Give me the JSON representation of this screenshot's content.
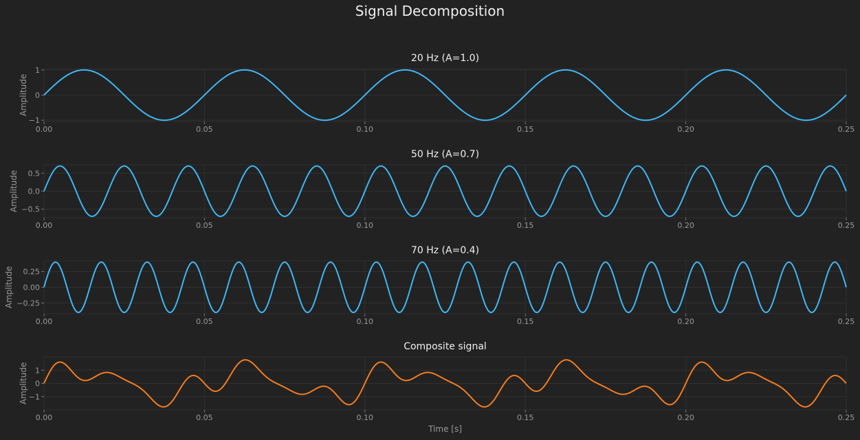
{
  "title": "Signal Decomposition",
  "chart_data": [
    {
      "type": "line",
      "title": "20 Hz  (A=1.0)",
      "xlabel": "",
      "ylabel": "Amplitude",
      "xlim": [
        0,
        0.25
      ],
      "ylim": [
        -1.05,
        1.05
      ],
      "xticks": [
        0.0,
        0.05,
        0.1,
        0.15,
        0.2,
        0.25
      ],
      "xtick_labels": [
        "0.00",
        "0.05",
        "0.10",
        "0.15",
        "0.20",
        "0.25"
      ],
      "yticks": [
        -1,
        0,
        1
      ],
      "ytick_labels": [
        "−1",
        "0",
        "1"
      ],
      "grid": true,
      "color": "#3fb7f5",
      "signal": {
        "components": [
          {
            "freq_hz": 20,
            "amplitude": 1.0
          }
        ]
      }
    },
    {
      "type": "line",
      "title": "50 Hz  (A=0.7)",
      "xlabel": "",
      "ylabel": "Amplitude",
      "xlim": [
        0,
        0.25
      ],
      "ylim": [
        -0.735,
        0.735
      ],
      "xticks": [
        0.0,
        0.05,
        0.1,
        0.15,
        0.2,
        0.25
      ],
      "xtick_labels": [
        "0.00",
        "0.05",
        "0.10",
        "0.15",
        "0.20",
        "0.25"
      ],
      "yticks": [
        -0.5,
        0,
        0.5
      ],
      "ytick_labels": [
        "−0.5",
        "0.0",
        "0.5"
      ],
      "grid": true,
      "color": "#3fb7f5",
      "signal": {
        "components": [
          {
            "freq_hz": 50,
            "amplitude": 0.7
          }
        ]
      }
    },
    {
      "type": "line",
      "title": "70 Hz  (A=0.4)",
      "xlabel": "",
      "ylabel": "Amplitude",
      "xlim": [
        0,
        0.25
      ],
      "ylim": [
        -0.42,
        0.42
      ],
      "xticks": [
        0.0,
        0.05,
        0.1,
        0.15,
        0.2,
        0.25
      ],
      "xtick_labels": [
        "0.00",
        "0.05",
        "0.10",
        "0.15",
        "0.20",
        "0.25"
      ],
      "yticks": [
        -0.25,
        0,
        0.25
      ],
      "ytick_labels": [
        "−0.25",
        "0.00",
        "0.25"
      ],
      "grid": true,
      "color": "#3fb7f5",
      "signal": {
        "components": [
          {
            "freq_hz": 70,
            "amplitude": 0.4
          }
        ]
      }
    },
    {
      "type": "line",
      "title": "Composite signal",
      "xlabel": "Time [s]",
      "ylabel": "Amplitude",
      "xlim": [
        0,
        0.25
      ],
      "ylim": [
        -2.0,
        2.0
      ],
      "xticks": [
        0.0,
        0.05,
        0.1,
        0.15,
        0.2,
        0.25
      ],
      "xtick_labels": [
        "0.00",
        "0.05",
        "0.10",
        "0.15",
        "0.20",
        "0.25"
      ],
      "yticks": [
        -1,
        0,
        1
      ],
      "ytick_labels": [
        "−1",
        "0",
        "1"
      ],
      "grid": true,
      "color": "#f47c20",
      "signal": {
        "components": [
          {
            "freq_hz": 20,
            "amplitude": 1.0
          },
          {
            "freq_hz": 50,
            "amplitude": 0.7
          },
          {
            "freq_hz": 70,
            "amplitude": 0.4
          }
        ]
      }
    }
  ]
}
